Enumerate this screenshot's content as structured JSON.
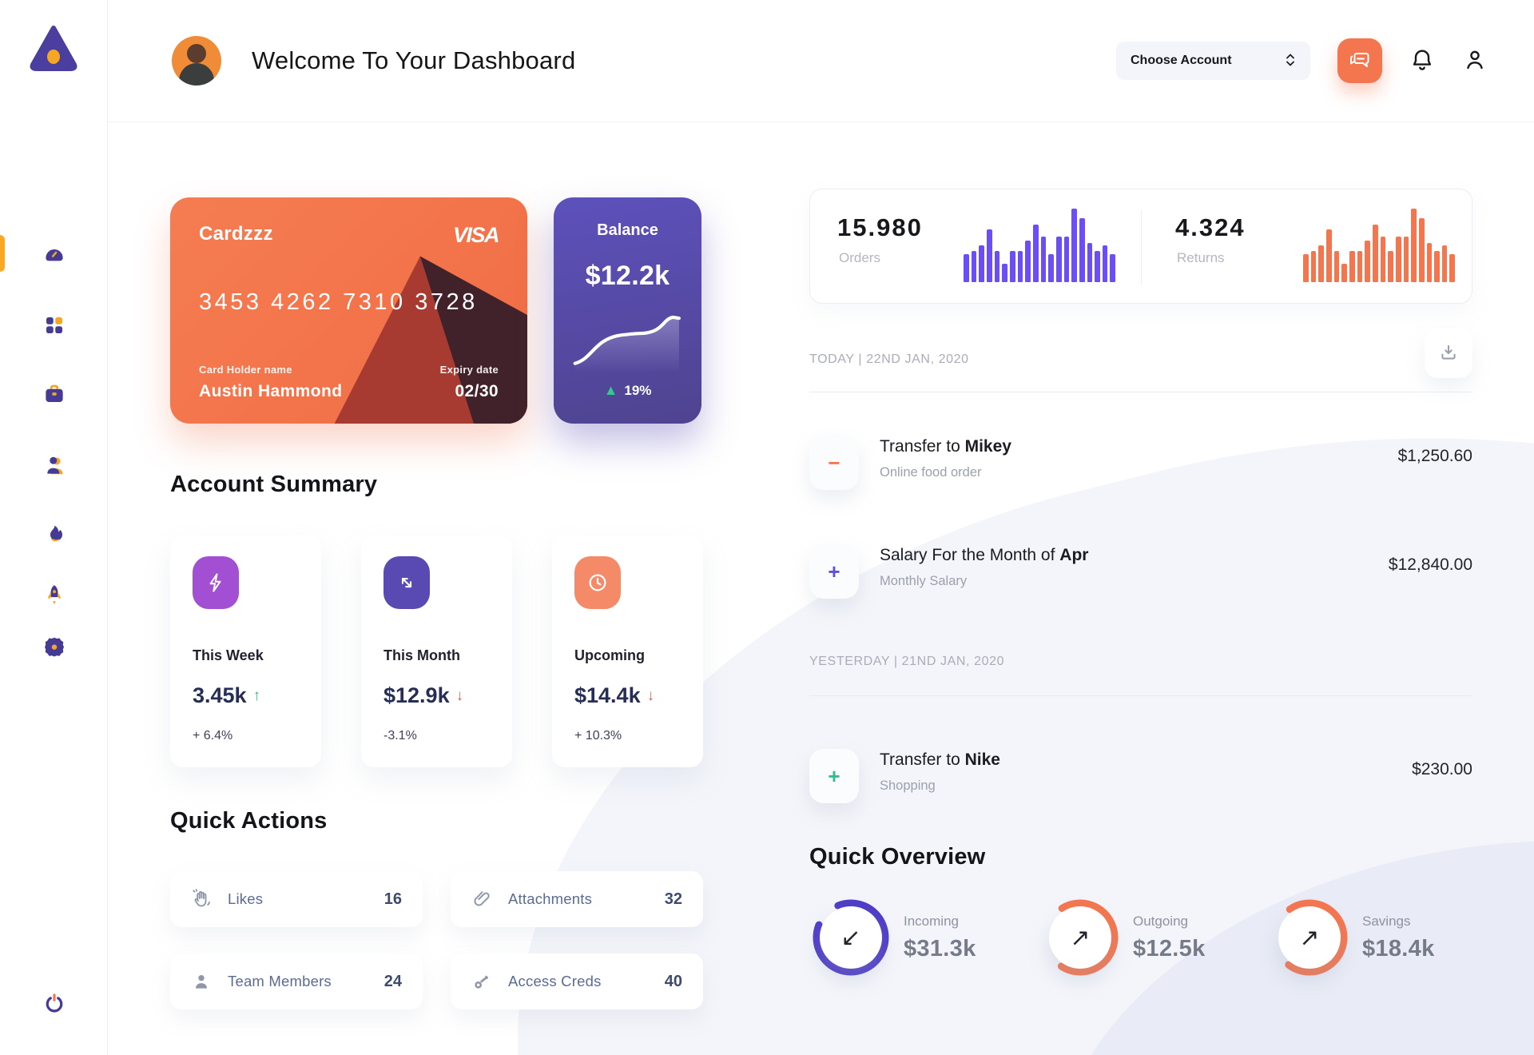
{
  "header": {
    "title": "Welcome To Your Dashboard",
    "account_selector": "Choose Account"
  },
  "sidebar": {
    "items": [
      {
        "id": "dashboard",
        "icon": "gauge",
        "active": true
      },
      {
        "id": "apps",
        "icon": "grid",
        "active": false
      },
      {
        "id": "work",
        "icon": "briefcase",
        "active": false
      },
      {
        "id": "team",
        "icon": "user",
        "active": false
      },
      {
        "id": "trending",
        "icon": "flame",
        "active": false
      },
      {
        "id": "launch",
        "icon": "rocket",
        "active": false
      },
      {
        "id": "settings",
        "icon": "gear",
        "active": false
      }
    ]
  },
  "credit_card": {
    "name": "Cardzzz",
    "brand": "VISA",
    "number": "3453 4262 7310 3728",
    "holder_label": "Card Holder name",
    "holder": "Austin Hammond",
    "expiry_label": "Expiry date",
    "expiry": "02/30"
  },
  "balance_card": {
    "label": "Balance",
    "amount": "$12.2k",
    "change": "19%",
    "up_arrow": "▲"
  },
  "stats": {
    "orders": {
      "value": "15.980",
      "label": "Orders",
      "color": "#6b4ef5",
      "bars": [
        38,
        42,
        50,
        72,
        42,
        25,
        42,
        42,
        57,
        78,
        62,
        38,
        62,
        62,
        100,
        87,
        53,
        42,
        50,
        38
      ]
    },
    "returns": {
      "value": "4.324",
      "label": "Returns",
      "color": "#f4764f",
      "bars": [
        38,
        42,
        50,
        72,
        42,
        25,
        42,
        42,
        57,
        78,
        62,
        42,
        62,
        62,
        100,
        87,
        53,
        42,
        50,
        38
      ]
    }
  },
  "transactions": {
    "groups": [
      {
        "date_label": "TODAY | 22ND JAN, 2020",
        "items": [
          {
            "sign": "minus",
            "accent": "#f4764f",
            "title_prefix": "Transfer to ",
            "title_bold": "Mikey",
            "subtitle": "Online food order",
            "amount": "$1,250.60"
          },
          {
            "sign": "plus",
            "accent": "#5b50d6",
            "title_prefix": "Salary For the Month of ",
            "title_bold": "Apr",
            "subtitle": "Monthly Salary",
            "amount": "$12,840.00"
          }
        ]
      },
      {
        "date_label": "YESTERDAY | 21ND JAN, 2020",
        "items": [
          {
            "sign": "plus",
            "accent": "#2dbe8d",
            "title_prefix": "Transfer to ",
            "title_bold": "Nike",
            "subtitle": "Shopping",
            "amount": "$230.00"
          }
        ]
      }
    ]
  },
  "account_summary": {
    "title": "Account Summary",
    "cards": [
      {
        "icon": "lightning",
        "icon_bg": "#a34fd3",
        "period": "This Week",
        "value": "3.45k",
        "trend": "up",
        "change": "+ 6.4%"
      },
      {
        "icon": "trend",
        "icon_bg": "#584ab2",
        "period": "This Month",
        "value": "$12.9k",
        "trend": "down",
        "change": "-3.1%"
      },
      {
        "icon": "clock",
        "icon_bg": "#f58a68",
        "period": "Upcoming",
        "value": "$14.4k",
        "trend": "down",
        "change": "+ 10.3%"
      }
    ]
  },
  "quick_actions": {
    "title": "Quick Actions",
    "items": [
      {
        "icon": "hand",
        "label": "Likes",
        "count": "16"
      },
      {
        "icon": "paperclip",
        "label": "Attachments",
        "count": "32"
      },
      {
        "icon": "member",
        "label": "Team Members",
        "count": "24"
      },
      {
        "icon": "key",
        "label": "Access Creds",
        "count": "40"
      }
    ]
  },
  "quick_overview": {
    "title": "Quick Overview",
    "items": [
      {
        "label": "Incoming",
        "value": "$31.3k",
        "ring_color": "#4f3cc8",
        "pct": 87,
        "rot": -112,
        "arrow": "↙"
      },
      {
        "label": "Outgoing",
        "value": "$12.5k",
        "ring_color": "#f4764f",
        "pct": 68,
        "rot": -122,
        "arrow": "↗"
      },
      {
        "label": "Savings",
        "value": "$18.4k",
        "ring_color": "#f4764f",
        "pct": 70,
        "rot": -125,
        "arrow": "↗"
      }
    ]
  },
  "chart_data": [
    {
      "type": "bar",
      "title": "Orders mini chart",
      "values": [
        38,
        42,
        50,
        72,
        42,
        25,
        42,
        42,
        57,
        78,
        62,
        38,
        62,
        62,
        100,
        87,
        53,
        42,
        50,
        38
      ],
      "ylim": [
        0,
        100
      ],
      "legend_position": "none"
    },
    {
      "type": "bar",
      "title": "Returns mini chart",
      "values": [
        38,
        42,
        50,
        72,
        42,
        25,
        42,
        42,
        57,
        78,
        62,
        42,
        62,
        62,
        100,
        87,
        53,
        42,
        50,
        38
      ],
      "ylim": [
        0,
        100
      ],
      "legend_position": "none"
    },
    {
      "type": "line",
      "title": "Balance trend",
      "values": [
        78,
        72,
        62,
        52,
        46,
        44,
        43,
        43,
        42,
        40,
        34,
        27,
        26,
        28
      ],
      "ylim": [
        0,
        100
      ],
      "legend_position": "none"
    }
  ]
}
